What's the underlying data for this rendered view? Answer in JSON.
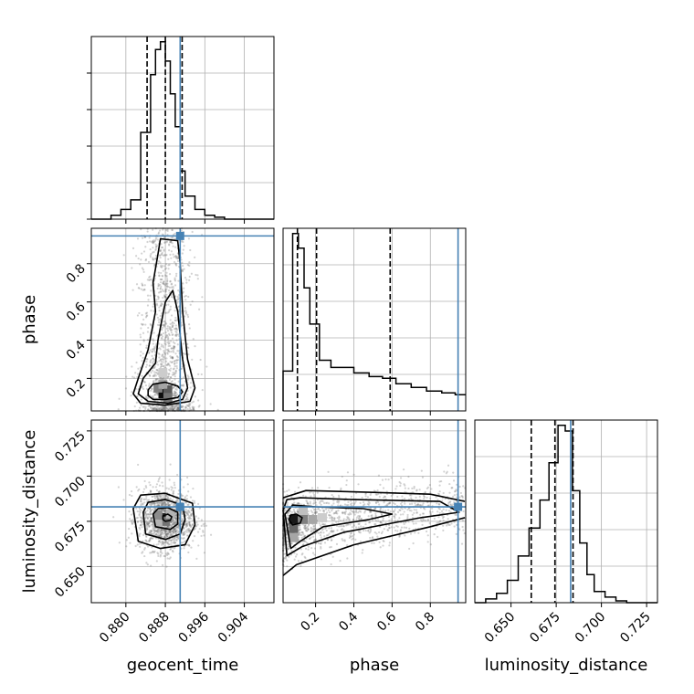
{
  "chart_data": {
    "type": "corner",
    "parameters": [
      "geocent_time",
      "phase",
      "luminosity_distance"
    ],
    "truth_color": "#4682b4",
    "grid": true,
    "ranges": {
      "geocent_time": [
        0.873,
        0.91
      ],
      "phase": [
        0.03,
        0.985
      ],
      "luminosity_distance": [
        0.63,
        0.731
      ]
    },
    "ticks": {
      "geocent_time": [
        "0.880",
        "0.888",
        "0.896",
        "0.904"
      ],
      "phase": [
        "0.2",
        "0.4",
        "0.6",
        "0.8"
      ],
      "luminosity_distance_x": [
        "0.650",
        "0.675",
        "0.700",
        "0.725"
      ],
      "luminosity_distance_y": [
        "0.650",
        "0.675",
        "0.700",
        "0.725"
      ]
    },
    "truths": {
      "geocent_time": 0.891,
      "phase": 0.945,
      "luminosity_distance": 0.683
    },
    "quantiles": {
      "geocent_time": [
        0.8843,
        0.888,
        0.8914
      ],
      "phase": [
        0.105,
        0.205,
        0.59
      ],
      "luminosity_distance": [
        0.6612,
        0.6743,
        0.6843
      ]
    },
    "hist_geocent_time": {
      "bins": [
        0.873,
        0.875,
        0.877,
        0.879,
        0.881,
        0.883,
        0.885,
        0.886,
        0.887,
        0.888,
        0.889,
        0.89,
        0.891,
        0.892,
        0.894,
        0.896,
        0.898,
        0.9,
        0.902,
        0.904,
        0.906,
        0.91
      ],
      "counts": [
        0,
        0,
        2,
        5,
        10,
        45,
        75,
        88,
        92,
        82,
        65,
        48,
        25,
        12,
        5,
        2,
        1,
        0,
        0,
        0,
        0
      ]
    },
    "hist_phase": {
      "bins": [
        0.03,
        0.08,
        0.11,
        0.14,
        0.17,
        0.22,
        0.28,
        0.33,
        0.4,
        0.48,
        0.55,
        0.62,
        0.7,
        0.78,
        0.86,
        0.93,
        0.985
      ],
      "counts": [
        22,
        98,
        90,
        68,
        48,
        28,
        24,
        24,
        21,
        19,
        18,
        15,
        13,
        11,
        10,
        9
      ]
    },
    "hist_luminosity_distance": {
      "bins": [
        0.63,
        0.636,
        0.642,
        0.648,
        0.654,
        0.66,
        0.666,
        0.671,
        0.676,
        0.68,
        0.684,
        0.688,
        0.692,
        0.696,
        0.702,
        0.708,
        0.714,
        0.72,
        0.731
      ],
      "counts": [
        0,
        2,
        5,
        12,
        25,
        40,
        55,
        75,
        95,
        92,
        60,
        32,
        15,
        6,
        3,
        1,
        0,
        0
      ]
    },
    "contours_geocent_time_phase": [
      [
        [
          0.8845,
          0.11
        ],
        [
          0.8855,
          0.09
        ],
        [
          0.888,
          0.09
        ],
        [
          0.8905,
          0.1
        ],
        [
          0.8915,
          0.13
        ],
        [
          0.8905,
          0.16
        ],
        [
          0.888,
          0.18
        ],
        [
          0.8855,
          0.17
        ],
        [
          0.8845,
          0.14
        ]
      ],
      [
        [
          0.8825,
          0.12
        ],
        [
          0.8845,
          0.08
        ],
        [
          0.8885,
          0.07
        ],
        [
          0.8915,
          0.09
        ],
        [
          0.8925,
          0.15
        ],
        [
          0.8915,
          0.3
        ],
        [
          0.8905,
          0.55
        ],
        [
          0.8895,
          0.66
        ],
        [
          0.888,
          0.6
        ],
        [
          0.8865,
          0.4
        ],
        [
          0.886,
          0.28
        ],
        [
          0.8835,
          0.2
        ]
      ],
      [
        [
          0.8815,
          0.12
        ],
        [
          0.883,
          0.07
        ],
        [
          0.888,
          0.06
        ],
        [
          0.893,
          0.08
        ],
        [
          0.894,
          0.15
        ],
        [
          0.8925,
          0.3
        ],
        [
          0.8915,
          0.55
        ],
        [
          0.891,
          0.8
        ],
        [
          0.8905,
          0.92
        ],
        [
          0.887,
          0.93
        ],
        [
          0.8865,
          0.85
        ],
        [
          0.8855,
          0.7
        ],
        [
          0.886,
          0.55
        ],
        [
          0.8845,
          0.35
        ],
        [
          0.8825,
          0.2
        ]
      ]
    ],
    "contours_geocent_time_luminosity_distance": [
      [
        [
          0.8875,
          0.676
        ],
        [
          0.888,
          0.675
        ],
        [
          0.889,
          0.6755
        ],
        [
          0.8893,
          0.6775
        ],
        [
          0.8885,
          0.679
        ],
        [
          0.8875,
          0.678
        ]
      ],
      [
        [
          0.8855,
          0.679
        ],
        [
          0.886,
          0.672
        ],
        [
          0.889,
          0.6705
        ],
        [
          0.8905,
          0.6735
        ],
        [
          0.8905,
          0.68
        ],
        [
          0.8885,
          0.6825
        ],
        [
          0.8865,
          0.682
        ]
      ],
      [
        [
          0.8835,
          0.68
        ],
        [
          0.884,
          0.668
        ],
        [
          0.888,
          0.665
        ],
        [
          0.891,
          0.668
        ],
        [
          0.892,
          0.676
        ],
        [
          0.8915,
          0.684
        ],
        [
          0.888,
          0.687
        ],
        [
          0.8845,
          0.6855
        ]
      ],
      [
        [
          0.8815,
          0.682
        ],
        [
          0.8825,
          0.664
        ],
        [
          0.887,
          0.66
        ],
        [
          0.892,
          0.662
        ],
        [
          0.894,
          0.673
        ],
        [
          0.8935,
          0.685
        ],
        [
          0.888,
          0.6905
        ],
        [
          0.883,
          0.6895
        ]
      ]
    ],
    "contours_phase_luminosity_distance": [
      [
        [
          0.06,
          0.676
        ],
        [
          0.08,
          0.673
        ],
        [
          0.12,
          0.674
        ],
        [
          0.13,
          0.677
        ],
        [
          0.1,
          0.679
        ],
        [
          0.07,
          0.6785
        ]
      ],
      [
        [
          0.04,
          0.679
        ],
        [
          0.07,
          0.66
        ],
        [
          0.12,
          0.664
        ],
        [
          0.24,
          0.672
        ],
        [
          0.48,
          0.676
        ],
        [
          0.6,
          0.679
        ],
        [
          0.45,
          0.682
        ],
        [
          0.2,
          0.683
        ],
        [
          0.08,
          0.684
        ]
      ],
      [
        [
          0.03,
          0.681
        ],
        [
          0.05,
          0.656
        ],
        [
          0.13,
          0.661
        ],
        [
          0.35,
          0.669
        ],
        [
          0.75,
          0.677
        ],
        [
          0.95,
          0.68
        ],
        [
          0.85,
          0.686
        ],
        [
          0.4,
          0.687
        ],
        [
          0.12,
          0.688
        ],
        [
          0.05,
          0.687
        ]
      ],
      [
        [
          0.03,
          0.645
        ],
        [
          0.1,
          0.651
        ],
        [
          0.4,
          0.662
        ],
        [
          0.8,
          0.672
        ],
        [
          0.98,
          0.677
        ]
      ],
      [
        [
          0.03,
          0.688
        ],
        [
          0.15,
          0.692
        ],
        [
          0.5,
          0.691
        ],
        [
          0.8,
          0.69
        ],
        [
          0.98,
          0.686
        ]
      ]
    ]
  }
}
